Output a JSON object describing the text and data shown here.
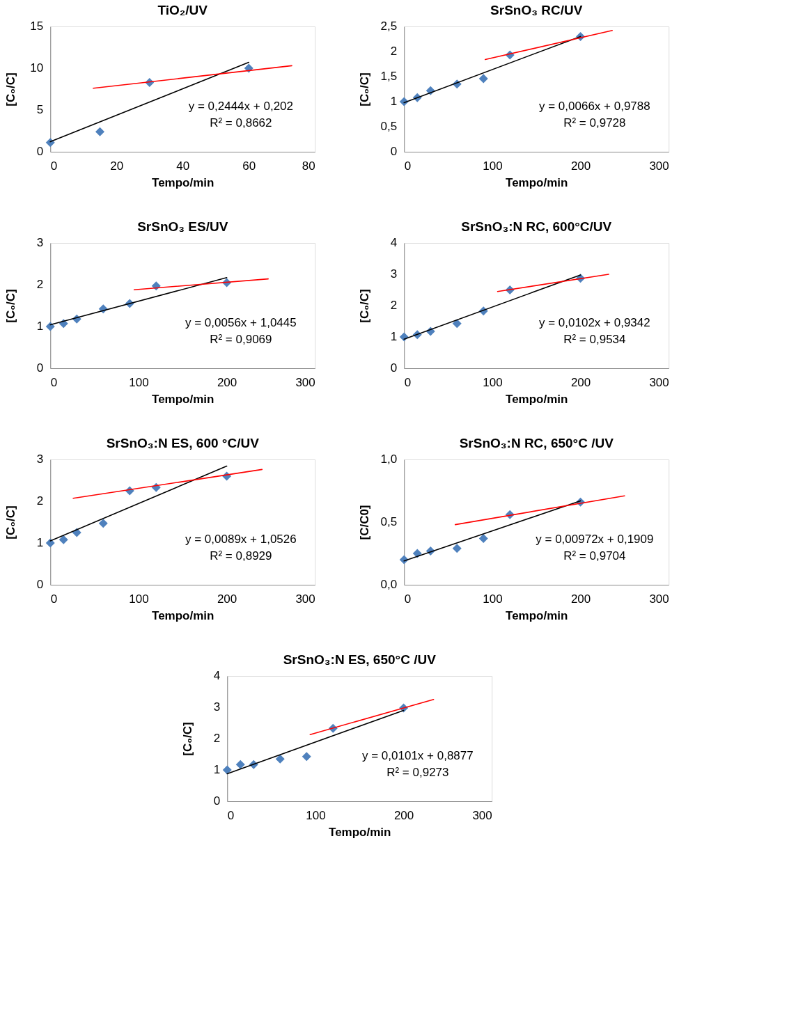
{
  "chart_data": [
    {
      "type": "scatter",
      "title": "TiO₂/UV",
      "xlabel": "Tempo/min",
      "ylabel": "[C₀/C]",
      "x": [
        0,
        15,
        30,
        60
      ],
      "xlim": [
        0,
        80
      ],
      "xticks": [
        0,
        20,
        40,
        60,
        80
      ],
      "ylim": [
        0,
        15
      ],
      "yticks": [
        0,
        5,
        10,
        15
      ],
      "grid": false,
      "legend": false,
      "annotations": [
        "y = 0,2444x + 0,202",
        "R² = 0,8662"
      ],
      "series": [
        {
          "type": "scatter",
          "marker": "diamond",
          "color": "#4f81bd",
          "values": [
            1.1,
            2.4,
            8.3,
            10.0
          ]
        },
        {
          "type": "line",
          "line_style": "solid",
          "color": "#000000",
          "x": [
            0,
            60
          ],
          "values": [
            1.2,
            10.7
          ]
        },
        {
          "type": "line",
          "line_style": "solid",
          "color": "#ff0000",
          "x": [
            13,
            73
          ],
          "values": [
            7.6,
            10.3
          ]
        }
      ]
    },
    {
      "type": "scatter",
      "title": "SrSnO₃ RC/UV",
      "xlabel": "Tempo/min",
      "ylabel": "[C₀/C]",
      "x": [
        0,
        15,
        30,
        60,
        90,
        120,
        200
      ],
      "xlim": [
        0,
        300
      ],
      "xticks": [
        0,
        100,
        200,
        300
      ],
      "ylim": [
        0,
        2.5
      ],
      "yticks": [
        0,
        {
          "value": 0.5,
          "label": "0,5"
        },
        1,
        {
          "value": 1.5,
          "label": "1,5"
        },
        2,
        {
          "value": 2.5,
          "label": "2,5"
        }
      ],
      "grid": false,
      "legend": false,
      "annotations": [
        "y = 0,0066x + 0,9788",
        "R² = 0,9728"
      ],
      "series": [
        {
          "type": "scatter",
          "marker": "diamond",
          "color": "#4f81bd",
          "values": [
            1.0,
            1.08,
            1.22,
            1.35,
            1.46,
            1.93,
            2.3
          ]
        },
        {
          "type": "line",
          "line_style": "solid",
          "color": "#000000",
          "x": [
            0,
            200
          ],
          "values": [
            0.98,
            2.3
          ]
        },
        {
          "type": "line",
          "line_style": "solid",
          "color": "#ff0000",
          "x": [
            92,
            236
          ],
          "values": [
            1.84,
            2.42
          ]
        }
      ]
    },
    {
      "type": "scatter",
      "title": "SrSnO₃ ES/UV",
      "xlabel": "Tempo/min",
      "ylabel": "[C₀/C]",
      "x": [
        0,
        15,
        30,
        60,
        90,
        120,
        200
      ],
      "xlim": [
        0,
        300
      ],
      "xticks": [
        0,
        100,
        200,
        300
      ],
      "ylim": [
        0,
        3
      ],
      "yticks": [
        0,
        1,
        2,
        3
      ],
      "grid": false,
      "legend": false,
      "annotations": [
        "y = 0,0056x + 1,0445",
        "R² = 0,9069"
      ],
      "series": [
        {
          "type": "scatter",
          "marker": "diamond",
          "color": "#4f81bd",
          "values": [
            1.0,
            1.07,
            1.18,
            1.42,
            1.55,
            1.97,
            2.05
          ]
        },
        {
          "type": "line",
          "line_style": "solid",
          "color": "#000000",
          "x": [
            0,
            200
          ],
          "values": [
            1.04,
            2.17
          ]
        },
        {
          "type": "line",
          "line_style": "solid",
          "color": "#ff0000",
          "x": [
            95,
            247
          ],
          "values": [
            1.88,
            2.14
          ]
        }
      ]
    },
    {
      "type": "scatter",
      "title": "SrSnO₃:N RC, 600°C/UV",
      "xlabel": "Tempo/min",
      "ylabel": "[C₀/C]",
      "x": [
        0,
        15,
        30,
        60,
        90,
        120,
        200
      ],
      "xlim": [
        0,
        300
      ],
      "xticks": [
        0,
        100,
        200,
        300
      ],
      "ylim": [
        0,
        4
      ],
      "yticks": [
        0,
        1,
        2,
        3,
        4
      ],
      "grid": false,
      "legend": false,
      "annotations": [
        "y = 0,0102x + 0,9342",
        "R² = 0,9534"
      ],
      "series": [
        {
          "type": "scatter",
          "marker": "diamond",
          "color": "#4f81bd",
          "values": [
            1.0,
            1.07,
            1.18,
            1.43,
            1.83,
            2.5,
            2.87
          ]
        },
        {
          "type": "line",
          "line_style": "solid",
          "color": "#000000",
          "x": [
            0,
            200
          ],
          "values": [
            0.93,
            2.98
          ]
        },
        {
          "type": "line",
          "line_style": "solid",
          "color": "#ff0000",
          "x": [
            106,
            232
          ],
          "values": [
            2.45,
            3.0
          ]
        }
      ]
    },
    {
      "type": "scatter",
      "title": "SrSnO₃:N ES, 600 °C/UV",
      "xlabel": "Tempo/min",
      "ylabel": "[C₀/C]",
      "x": [
        0,
        15,
        30,
        60,
        90,
        120,
        200
      ],
      "xlim": [
        0,
        300
      ],
      "xticks": [
        0,
        100,
        200,
        300
      ],
      "ylim": [
        0,
        3
      ],
      "yticks": [
        0,
        1,
        2,
        3
      ],
      "grid": false,
      "legend": false,
      "annotations": [
        "y = 0,0089x + 1,0526",
        "R² = 0,8929"
      ],
      "series": [
        {
          "type": "scatter",
          "marker": "diamond",
          "color": "#4f81bd",
          "values": [
            1.0,
            1.08,
            1.25,
            1.47,
            2.25,
            2.33,
            2.6
          ]
        },
        {
          "type": "line",
          "line_style": "solid",
          "color": "#000000",
          "x": [
            0,
            200
          ],
          "values": [
            1.05,
            2.84
          ]
        },
        {
          "type": "line",
          "line_style": "solid",
          "color": "#ff0000",
          "x": [
            26,
            240
          ],
          "values": [
            2.07,
            2.76
          ]
        }
      ]
    },
    {
      "type": "scatter",
      "title": "SrSnO₃:N RC, 650°C /UV",
      "xlabel": "Tempo/min",
      "ylabel": "[C/C0]",
      "x": [
        0,
        15,
        30,
        60,
        90,
        120,
        200
      ],
      "xlim": [
        0,
        300
      ],
      "xticks": [
        0,
        100,
        200,
        300
      ],
      "ylim": [
        0,
        1
      ],
      "yticks": [
        {
          "value": 0,
          "label": "0,0"
        },
        {
          "value": 0.5,
          "label": "0,5"
        },
        {
          "value": 1,
          "label": "1,0"
        }
      ],
      "grid": false,
      "legend": false,
      "annotations": [
        "y = 0,00972x + 0,1909",
        "R² = 0,9704"
      ],
      "series": [
        {
          "type": "scatter",
          "marker": "diamond",
          "color": "#4f81bd",
          "values": [
            0.2,
            0.25,
            0.27,
            0.29,
            0.37,
            0.56,
            0.66
          ]
        },
        {
          "type": "line",
          "line_style": "solid",
          "color": "#000000",
          "x": [
            0,
            200
          ],
          "values": [
            0.19,
            0.67
          ]
        },
        {
          "type": "line",
          "line_style": "solid",
          "color": "#ff0000",
          "x": [
            58,
            250
          ],
          "values": [
            0.48,
            0.71
          ]
        }
      ]
    },
    {
      "type": "scatter",
      "title": "SrSnO₃:N ES, 650°C /UV",
      "xlabel": "Tempo/min",
      "ylabel": "[C₀/C]",
      "x": [
        0,
        15,
        30,
        60,
        90,
        120,
        200
      ],
      "xlim": [
        0,
        300
      ],
      "xticks": [
        0,
        100,
        200,
        300
      ],
      "ylim": [
        0,
        4
      ],
      "yticks": [
        0,
        1,
        2,
        3,
        4
      ],
      "grid": false,
      "legend": false,
      "annotations": [
        "y = 0,0101x + 0,8877",
        "R² = 0,9273"
      ],
      "series": [
        {
          "type": "scatter",
          "marker": "diamond",
          "color": "#4f81bd",
          "values": [
            1.0,
            1.17,
            1.17,
            1.35,
            1.43,
            2.33,
            2.98
          ]
        },
        {
          "type": "line",
          "line_style": "solid",
          "color": "#000000",
          "x": [
            0,
            200
          ],
          "values": [
            0.88,
            2.9
          ]
        },
        {
          "type": "line",
          "line_style": "solid",
          "color": "#ff0000",
          "x": [
            94,
            234
          ],
          "values": [
            2.13,
            3.25
          ]
        }
      ]
    }
  ]
}
